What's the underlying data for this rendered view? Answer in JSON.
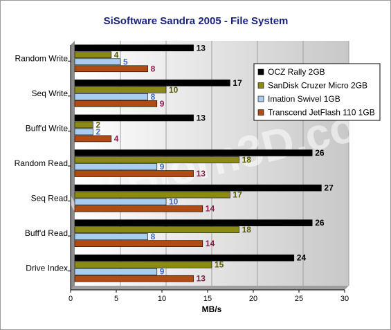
{
  "chart_data": {
    "type": "bar",
    "orientation": "horizontal",
    "title": "SiSoftware Sandra 2005 - File System",
    "xlabel": "MB/s",
    "ylabel": "",
    "xlim": [
      0,
      30
    ],
    "xticks": [
      0,
      5,
      10,
      15,
      20,
      25,
      30
    ],
    "grid": true,
    "legend_position": "right",
    "watermark": "www.Bjorn3D.com",
    "categories": [
      "Random Write",
      "Seq Write",
      "Buff'd Write",
      "Random Read",
      "Seq Read",
      "Buff'd Read",
      "Drive Index"
    ],
    "series": [
      {
        "name": "OCZ Rally 2GB",
        "color": "#000000",
        "label_color": "#000000",
        "values": [
          13,
          17,
          13,
          26,
          27,
          26,
          24
        ]
      },
      {
        "name": "SanDisk Cruzer Micro 2GB",
        "color": "#8a8a14",
        "label_color": "#5a5a00",
        "values": [
          4,
          10,
          2,
          18,
          17,
          18,
          15
        ]
      },
      {
        "name": "Imation Swivel 1GB",
        "color": "#a8cdf0",
        "label_color": "#4169c9",
        "values": [
          5,
          8,
          2,
          9,
          10,
          8,
          9
        ]
      },
      {
        "name": "Transcend JetFlash 110 1GB",
        "color": "#b24a14",
        "label_color": "#8c1a4a",
        "values": [
          8,
          9,
          4,
          13,
          14,
          14,
          13
        ]
      }
    ]
  }
}
